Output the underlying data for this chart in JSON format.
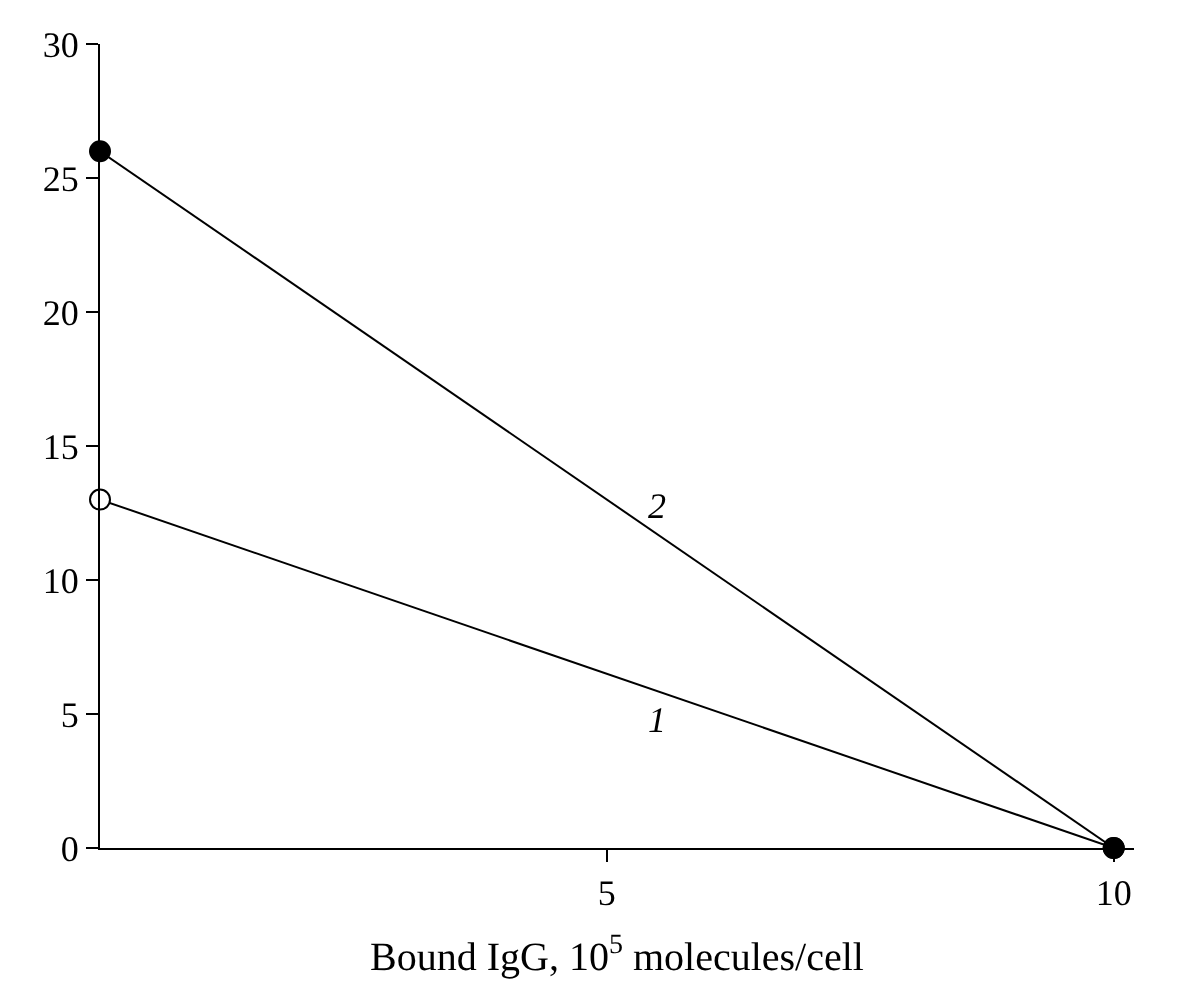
{
  "chart_data": {
    "type": "line",
    "xlabel": "Bound IgG, 10$^{5}$ molecules/cell",
    "x": [
      0,
      10
    ],
    "series": [
      {
        "name": "1",
        "color": "#000000",
        "values": [
          13,
          0
        ],
        "colors": [
          "#ffffff",
          "#000000"
        ]
      },
      {
        "name": "2",
        "color": "#000000",
        "values": [
          26,
          0
        ],
        "colors": [
          "#000000",
          "#000000"
        ]
      }
    ],
    "xlim": [
      0,
      10.2
    ],
    "xticks": [
      5,
      10
    ],
    "ylim": [
      0,
      30
    ],
    "yticks": [
      0,
      5,
      10,
      15,
      20,
      25,
      30
    ],
    "marker": "circle",
    "line_style": "solid",
    "legend": false
  }
}
